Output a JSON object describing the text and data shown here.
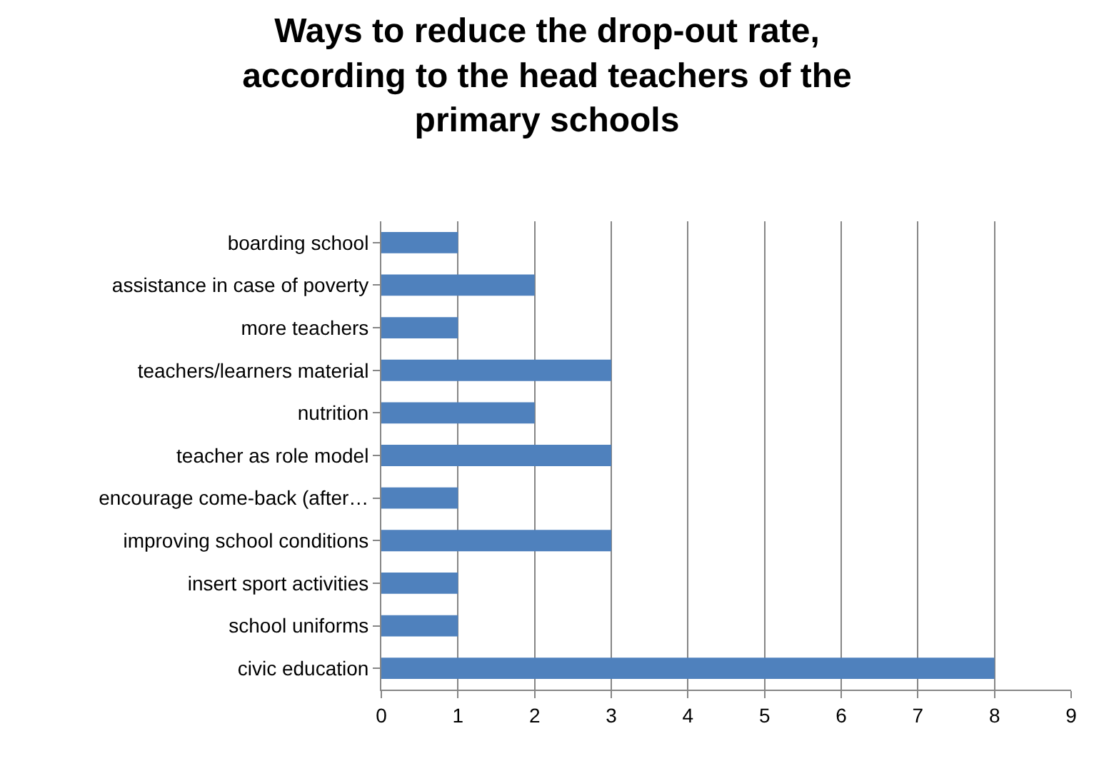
{
  "chart_data": {
    "type": "bar",
    "orientation": "horizontal",
    "title": "Ways to reduce the drop-out rate,\naccording to the head teachers of the\nprimary schools",
    "categories": [
      "boarding school",
      "assistance in case of poverty",
      "more teachers",
      "teachers/learners material",
      "nutrition",
      "teacher as role model",
      "encourage come-back (after…",
      "improving school conditions",
      "insert sport activities",
      "school uniforms",
      "civic education"
    ],
    "values": [
      1,
      2,
      1,
      3,
      2,
      3,
      1,
      3,
      1,
      1,
      8
    ],
    "color": "#4f81bd",
    "xlim": [
      0,
      9
    ],
    "xticks": [
      0,
      1,
      2,
      3,
      4,
      5,
      6,
      7,
      8,
      9
    ],
    "grid": "x"
  }
}
